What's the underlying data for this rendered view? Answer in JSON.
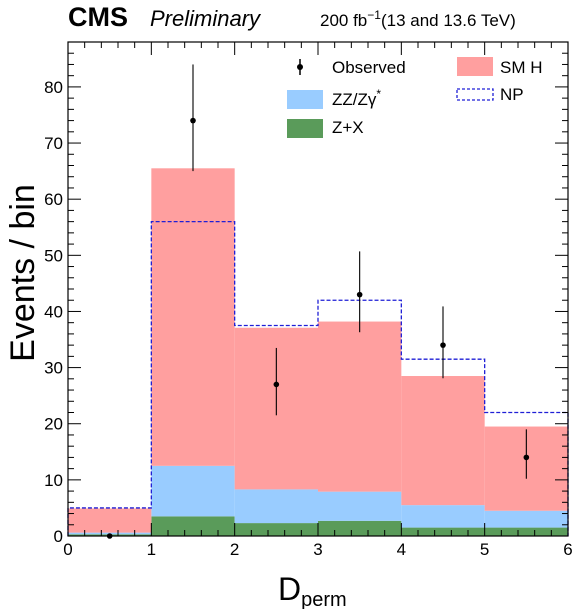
{
  "header": {
    "experiment": "CMS",
    "status": "Preliminary",
    "lumi_prefix": "200 fb",
    "lumi_exp": "−1",
    "lumi_suffix": "(13 and 13.6 TeV)"
  },
  "chart_data": {
    "type": "bar",
    "xlabel_main": "D",
    "xlabel_sub": "perm",
    "ylabel": "Events / bin",
    "xlim": [
      0,
      6
    ],
    "ylim": [
      0,
      88
    ],
    "xticks": [
      "0",
      "1",
      "2",
      "3",
      "4",
      "5",
      "6"
    ],
    "yticks": [
      "0",
      "10",
      "20",
      "30",
      "40",
      "50",
      "60",
      "70",
      "80"
    ],
    "bin_edges": [
      0,
      1,
      2,
      3,
      4,
      5,
      6
    ],
    "stack": [
      {
        "name": "Z+X",
        "color": "#5a9b5a",
        "values": [
          0.3,
          3.5,
          2.3,
          2.7,
          1.5,
          1.5
        ]
      },
      {
        "name": "ZZ/Zγ",
        "color": "#99ccff",
        "values": [
          0.3,
          9.0,
          6.0,
          5.2,
          4.0,
          3.0
        ]
      },
      {
        "name": "SM H",
        "color": "#ff9f9f",
        "values": [
          4.3,
          53.0,
          28.8,
          30.3,
          23.0,
          15.0
        ]
      }
    ],
    "np_hist": {
      "name": "NP",
      "color": "#1f1fd6",
      "values": [
        5.0,
        56.0,
        37.5,
        42.0,
        31.5,
        22.0
      ]
    },
    "observed": {
      "name": "Observed",
      "x": [
        0.5,
        1.5,
        2.5,
        3.5,
        4.5,
        5.5
      ],
      "y": [
        0,
        74,
        27,
        43,
        34,
        14
      ],
      "err_low": [
        0,
        9,
        5.5,
        6.7,
        5.9,
        3.8
      ],
      "err_high": [
        0,
        10,
        6.5,
        7.7,
        6.9,
        5.0
      ]
    },
    "legend": {
      "observed": "Observed",
      "smh": "SM H",
      "zz_main": "ZZ/Zγ",
      "zz_sup": "*",
      "np": "NP",
      "zx": "Z+X"
    },
    "legend_position": "top-right"
  }
}
